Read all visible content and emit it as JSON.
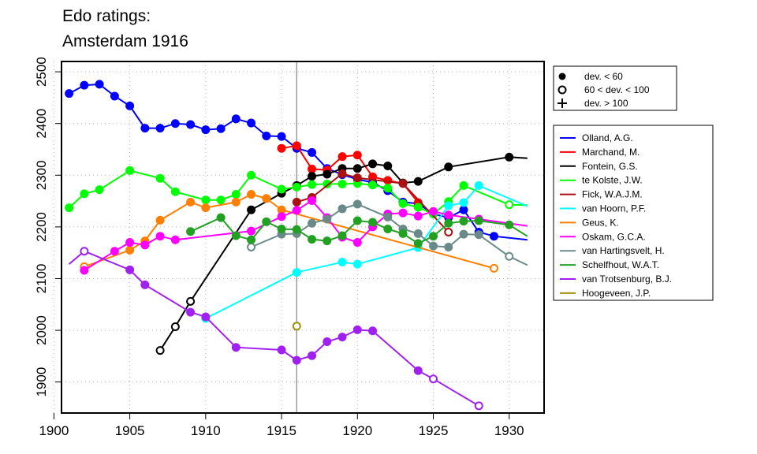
{
  "title_lines": [
    "Edo ratings:",
    "Amsterdam 1916"
  ],
  "chart_data": {
    "type": "line",
    "title": "Edo ratings: Amsterdam 1916",
    "xlim": [
      1900.5,
      1932.3
    ],
    "ylim": [
      1840,
      2520
    ],
    "xticks": [
      1900,
      1905,
      1910,
      1915,
      1920,
      1925,
      1930
    ],
    "yticks": [
      1900,
      2000,
      2100,
      2200,
      2300,
      2400,
      2500
    ],
    "grid": "dotted",
    "highlight_year": 1916,
    "marker_legend": [
      {
        "symbol": "filled-circle",
        "label": "dev. < 60"
      },
      {
        "symbol": "open-circle",
        "label": "60 < dev. < 100"
      },
      {
        "symbol": "plus",
        "label": "dev. > 100"
      }
    ],
    "legend_position": "right",
    "series": [
      {
        "name": "Olland, A.G.",
        "color": "#0000ff",
        "points": [
          [
            1901,
            2458,
            "f"
          ],
          [
            1902,
            2474,
            "f"
          ],
          [
            1903,
            2476,
            "f"
          ],
          [
            1904,
            2453,
            "f"
          ],
          [
            1905,
            2434,
            "f"
          ],
          [
            1906,
            2391,
            "f"
          ],
          [
            1907,
            2391,
            "f"
          ],
          [
            1908,
            2400,
            "f"
          ],
          [
            1909,
            2398,
            "f"
          ],
          [
            1910,
            2388,
            "f"
          ],
          [
            1911,
            2390,
            "f"
          ],
          [
            1912,
            2409,
            "f"
          ],
          [
            1913,
            2401,
            "f"
          ],
          [
            1914,
            2376,
            "f"
          ],
          [
            1915,
            2375,
            "f"
          ],
          [
            1916,
            2352,
            "f"
          ],
          [
            1917,
            2344,
            "f"
          ],
          [
            1918,
            2313,
            "f"
          ],
          [
            1919,
            2301,
            "f"
          ],
          [
            1920,
            2292,
            "f"
          ],
          [
            1921,
            2286,
            "f"
          ],
          [
            1922,
            2270,
            "f"
          ],
          [
            1923,
            2248,
            "f"
          ],
          [
            1924,
            2245,
            "f"
          ],
          [
            1925,
            2225,
            "f"
          ],
          [
            1926,
            2218,
            "f"
          ],
          [
            1927,
            2233,
            "f"
          ],
          [
            1928,
            2190,
            "f"
          ],
          [
            1929,
            2182,
            "f"
          ],
          [
            1931.2,
            2175,
            null
          ]
        ]
      },
      {
        "name": "Marchand, M.",
        "color": "#ff0000",
        "points": [
          [
            1915,
            2352,
            "f"
          ],
          [
            1916,
            2357,
            "f"
          ],
          [
            1917,
            2312,
            "f"
          ],
          [
            1918,
            2310,
            "f"
          ],
          [
            1919,
            2336,
            "f"
          ],
          [
            1920,
            2339,
            "f"
          ],
          [
            1921,
            2297,
            "f"
          ],
          [
            1922,
            2290,
            "f"
          ],
          [
            1923,
            2284,
            "f"
          ],
          [
            1924,
            2247,
            "f"
          ]
        ]
      },
      {
        "name": "Fontein, G.S.",
        "color": "#000000",
        "points": [
          [
            1907,
            1961,
            "o"
          ],
          [
            1908,
            2007,
            "o"
          ],
          [
            1909,
            2056,
            "o"
          ],
          [
            1913,
            2233,
            "f"
          ],
          [
            1915,
            2265,
            "f"
          ],
          [
            1916,
            2280,
            "f"
          ],
          [
            1917,
            2298,
            "f"
          ],
          [
            1918,
            2302,
            "f"
          ],
          [
            1919,
            2313,
            "f"
          ],
          [
            1920,
            2313,
            "f"
          ],
          [
            1921,
            2322,
            "f"
          ],
          [
            1922,
            2318,
            "f"
          ],
          [
            1923,
            2285,
            "f"
          ],
          [
            1924,
            2288,
            "f"
          ],
          [
            1926,
            2316,
            "f"
          ],
          [
            1930,
            2335,
            "f"
          ],
          [
            1931.2,
            2333,
            null
          ]
        ]
      },
      {
        "name": "te Kolste, J.W.",
        "color": "#00ff00",
        "points": [
          [
            1901,
            2237,
            "f"
          ],
          [
            1902,
            2264,
            "f"
          ],
          [
            1903,
            2272,
            "f"
          ],
          [
            1905,
            2309,
            "f"
          ],
          [
            1907,
            2294,
            "f"
          ],
          [
            1908,
            2268,
            "f"
          ],
          [
            1910,
            2252,
            "f"
          ],
          [
            1911,
            2252,
            "f"
          ],
          [
            1912,
            2263,
            "f"
          ],
          [
            1913,
            2300,
            "f"
          ],
          [
            1915,
            2273,
            "f"
          ],
          [
            1916,
            2277,
            "f"
          ],
          [
            1917,
            2282,
            "f"
          ],
          [
            1918,
            2283,
            "f"
          ],
          [
            1919,
            2283,
            "f"
          ],
          [
            1920,
            2284,
            "f"
          ],
          [
            1921,
            2281,
            "f"
          ],
          [
            1922,
            2275,
            "f"
          ],
          [
            1923,
            2245,
            "f"
          ],
          [
            1924,
            2238,
            "f"
          ],
          [
            1925,
            2225,
            "f"
          ],
          [
            1926,
            2249,
            "f"
          ],
          [
            1927,
            2280,
            "f"
          ],
          [
            1930,
            2243,
            "o"
          ],
          [
            1931.2,
            2242,
            null
          ]
        ]
      },
      {
        "name": "Fick, W.A.J.M.",
        "color": "#aa1111",
        "points": [
          [
            1916,
            2248,
            "f"
          ],
          [
            1917,
            2257,
            "f"
          ],
          [
            1919,
            2303,
            "f"
          ],
          [
            1920,
            2295,
            "f"
          ],
          [
            1923,
            2284,
            "f"
          ],
          [
            1926,
            2190,
            "o"
          ]
        ]
      },
      {
        "name": "van Hoorn, P.F.",
        "color": "#00ffff",
        "points": [
          [
            1910,
            2023,
            "o"
          ],
          [
            1916,
            2112,
            "f"
          ],
          [
            1919,
            2132,
            "f"
          ],
          [
            1920,
            2128,
            "f"
          ],
          [
            1924,
            2160,
            "f"
          ],
          [
            1926,
            2241,
            "f"
          ],
          [
            1927,
            2247,
            "f"
          ],
          [
            1928,
            2280,
            "f"
          ],
          [
            1931.2,
            2240,
            null
          ]
        ]
      },
      {
        "name": "Geus, K.",
        "color": "#ff7f00",
        "points": [
          [
            1902,
            2123,
            "o"
          ],
          [
            1905,
            2155,
            "f"
          ],
          [
            1906,
            2173,
            "f"
          ],
          [
            1907,
            2213,
            "f"
          ],
          [
            1909,
            2248,
            "f"
          ],
          [
            1910,
            2237,
            "f"
          ],
          [
            1912,
            2248,
            "f"
          ],
          [
            1913,
            2263,
            "f"
          ],
          [
            1914,
            2255,
            "f"
          ],
          [
            1915,
            2233,
            "f"
          ],
          [
            1929,
            2120,
            "o"
          ]
        ]
      },
      {
        "name": "Oskam, G.C.A.",
        "color": "#ff00ff",
        "points": [
          [
            1902,
            2116,
            "f"
          ],
          [
            1904,
            2153,
            "f"
          ],
          [
            1905,
            2170,
            "f"
          ],
          [
            1906,
            2165,
            "f"
          ],
          [
            1907,
            2182,
            "f"
          ],
          [
            1908,
            2175,
            "f"
          ],
          [
            1913,
            2192,
            "f"
          ],
          [
            1915,
            2220,
            "f"
          ],
          [
            1916,
            2232,
            "f"
          ],
          [
            1917,
            2251,
            "f"
          ],
          [
            1918,
            2218,
            "f"
          ],
          [
            1919,
            2180,
            "f"
          ],
          [
            1920,
            2170,
            "f"
          ],
          [
            1921,
            2200,
            "f"
          ],
          [
            1922,
            2225,
            "f"
          ],
          [
            1923,
            2227,
            "f"
          ],
          [
            1924,
            2221,
            "f"
          ],
          [
            1925,
            2230,
            "f"
          ],
          [
            1926,
            2223,
            "f"
          ],
          [
            1928,
            2215,
            "f"
          ],
          [
            1931.2,
            2202,
            null
          ]
        ]
      },
      {
        "name": "van Hartingsvelt, H.",
        "color": "#6a8a8a",
        "points": [
          [
            1913,
            2161,
            "o"
          ],
          [
            1915,
            2186,
            "f"
          ],
          [
            1916,
            2187,
            "f"
          ],
          [
            1917,
            2207,
            "f"
          ],
          [
            1918,
            2215,
            "f"
          ],
          [
            1919,
            2235,
            "f"
          ],
          [
            1920,
            2244,
            "f"
          ],
          [
            1922,
            2219,
            "f"
          ],
          [
            1923,
            2196,
            "f"
          ],
          [
            1924,
            2187,
            "f"
          ],
          [
            1925,
            2163,
            "f"
          ],
          [
            1926,
            2161,
            "f"
          ],
          [
            1927,
            2186,
            "f"
          ],
          [
            1928,
            2185,
            "f"
          ],
          [
            1930,
            2143,
            "o"
          ],
          [
            1931.2,
            2126,
            null
          ]
        ]
      },
      {
        "name": "Schelfhout, W.A.T.",
        "color": "#22a022",
        "points": [
          [
            1909,
            2191,
            "f"
          ],
          [
            1911,
            2218,
            "f"
          ],
          [
            1912,
            2183,
            "f"
          ],
          [
            1913,
            2175,
            "f"
          ],
          [
            1914,
            2210,
            "f"
          ],
          [
            1915,
            2196,
            "f"
          ],
          [
            1916,
            2195,
            "f"
          ],
          [
            1917,
            2176,
            "f"
          ],
          [
            1918,
            2173,
            "f"
          ],
          [
            1919,
            2183,
            "f"
          ],
          [
            1920,
            2212,
            "f"
          ],
          [
            1921,
            2209,
            "f"
          ],
          [
            1922,
            2196,
            "f"
          ],
          [
            1923,
            2187,
            "f"
          ],
          [
            1924,
            2168,
            "f"
          ],
          [
            1925,
            2182,
            "f"
          ],
          [
            1926,
            2207,
            "f"
          ],
          [
            1927,
            2211,
            "f"
          ],
          [
            1928,
            2212,
            "f"
          ],
          [
            1930,
            2204,
            "f"
          ],
          [
            1931.2,
            2182,
            null
          ]
        ]
      },
      {
        "name": "van Trotsenburg, B.J.",
        "color": "#a020f0",
        "points": [
          [
            1901,
            2128,
            null
          ],
          [
            1902,
            2153,
            "o"
          ],
          [
            1905,
            2117,
            "f"
          ],
          [
            1906,
            2088,
            "f"
          ],
          [
            1909,
            2035,
            "f"
          ],
          [
            1910,
            2026,
            "f"
          ],
          [
            1912,
            1967,
            "f"
          ],
          [
            1915,
            1962,
            "f"
          ],
          [
            1916,
            1942,
            "f"
          ],
          [
            1917,
            1951,
            "f"
          ],
          [
            1918,
            1978,
            "f"
          ],
          [
            1919,
            1987,
            "f"
          ],
          [
            1920,
            2001,
            "f"
          ],
          [
            1921,
            1999,
            "f"
          ],
          [
            1924,
            1922,
            "f"
          ],
          [
            1925,
            1906,
            "o"
          ],
          [
            1928,
            1854,
            "o"
          ]
        ]
      },
      {
        "name": "Hoogeveen, J.P.",
        "color": "#a09010",
        "points": [
          [
            1916,
            2008,
            "o"
          ]
        ]
      }
    ]
  }
}
